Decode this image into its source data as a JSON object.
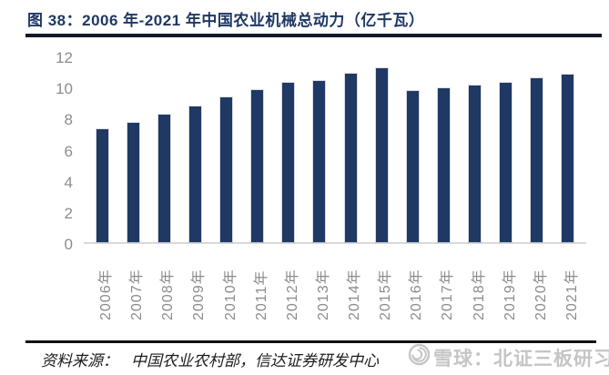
{
  "header": {
    "title": "图 38：2006 年-2021 年中国农业机械总动力（亿千瓦）"
  },
  "chart_data": {
    "type": "bar",
    "title": "2006年-2021年中国农业机械总动力（亿千瓦）",
    "categories": [
      "2006年",
      "2007年",
      "2008年",
      "2009年",
      "2010年",
      "2011年",
      "2012年",
      "2013年",
      "2014年",
      "2015年",
      "2016年",
      "2017年",
      "2018年",
      "2019年",
      "2020年",
      "2021年"
    ],
    "values": [
      7.26,
      7.66,
      8.22,
      8.75,
      9.28,
      9.77,
      10.26,
      10.39,
      10.81,
      11.17,
      9.72,
      9.88,
      10.04,
      10.27,
      10.56,
      10.78
    ],
    "xlabel": "",
    "ylabel": "",
    "ylim": [
      0,
      12
    ],
    "yticks": [
      0,
      2,
      4,
      6,
      8,
      10,
      12
    ],
    "grid": false,
    "legend_position": "none",
    "bar_color": "#1f3864",
    "axis_label_color": "#8c8c8c",
    "baseline_color": "#d9d9d9"
  },
  "footer": {
    "label": "资料来源：",
    "source": "中国农业农村部，信达证券研发中心"
  },
  "watermark": {
    "icon": "xueqiu-snowball-logo",
    "text": "雪球：北证三板研习社",
    "color": "#c5c5c5"
  },
  "colors": {
    "title": "#1f3864",
    "rule": "#14162a",
    "background": "#ffffff"
  }
}
